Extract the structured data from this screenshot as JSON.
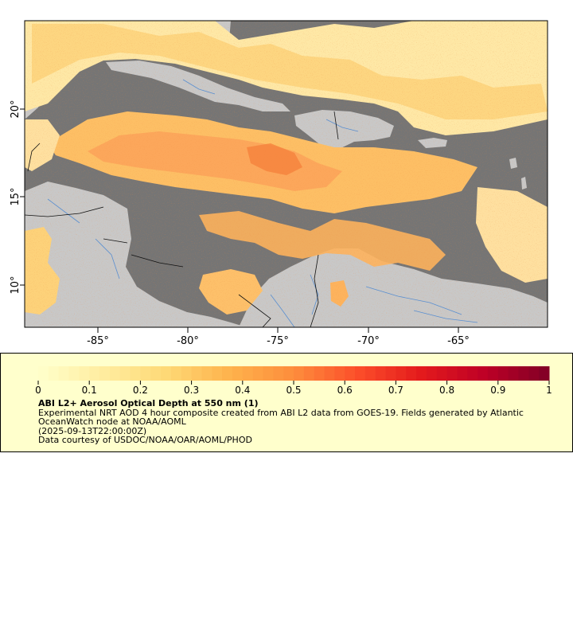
{
  "map": {
    "x_ticks": [
      "-85°",
      "-80°",
      "-75°",
      "-70°",
      "-65°"
    ],
    "y_ticks": [
      "20°",
      "15°",
      "10°"
    ],
    "colors": {
      "no_data": "#757575",
      "land": "#c8c8c8",
      "rivers": "#5a8fd0",
      "borders": "#000000"
    }
  },
  "legend": {
    "colorbar": {
      "min": 0,
      "max": 1,
      "labels": [
        "0",
        "0.1",
        "0.2",
        "0.3",
        "0.4",
        "0.5",
        "0.6",
        "0.7",
        "0.8",
        "0.9",
        "1"
      ],
      "colors": [
        "#ffffcc",
        "#ffeda0",
        "#fed976",
        "#feb24c",
        "#fd8d3c",
        "#fc4e2a",
        "#e31a1c",
        "#bd0026",
        "#800026"
      ]
    },
    "title": "ABI L2+ Aerosol Optical Depth at 550 nm (1)",
    "description": "Experimental NRT AOD 4 hour composite created from ABI L2 data from GOES-19. Fields generated by Atlantic OceanWatch node at NOAA/AOML",
    "timestamp": "(2025-09-13T22:00:00Z)",
    "credit": "Data courtesy of USDOC/NOAA/OAR/AOML/PHOD"
  }
}
